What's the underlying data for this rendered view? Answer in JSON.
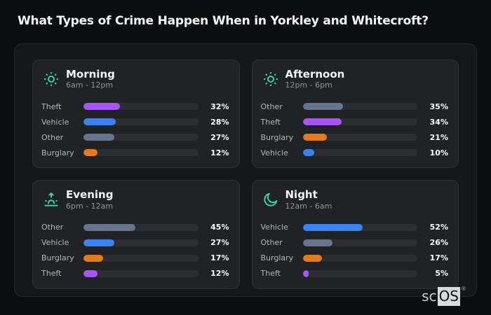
{
  "header": {
    "title": "What Types of Crime Happen When in Yorkley and Whitecroft?"
  },
  "brand": {
    "prefix": "sc",
    "suffix": "OS",
    "registered": "®"
  },
  "colors": {
    "accent": "#31d49f",
    "theft": "#a855f7",
    "vehicle": "#3b82f6",
    "other": "#66758c",
    "burglary": "#e5791b",
    "track": "#2c2e33",
    "card_bg": "#202226",
    "panel_bg": "#16171a",
    "page_bg": "#0c0d0f"
  },
  "chart_data": [
    {
      "type": "bar",
      "title": "Morning",
      "subtitle": "6am - 12pm",
      "icon": "sun-icon",
      "categories": [
        "Theft",
        "Vehicle",
        "Other",
        "Burglary"
      ],
      "values": [
        32,
        28,
        27,
        12
      ],
      "labels": [
        "32%",
        "28%",
        "27%",
        "12%"
      ],
      "colors": [
        "#a855f7",
        "#3b82f6",
        "#66758c",
        "#e5791b"
      ],
      "xlim": [
        0,
        100
      ],
      "legend": "none",
      "grid": false
    },
    {
      "type": "bar",
      "title": "Afternoon",
      "subtitle": "12pm - 6pm",
      "icon": "sun-icon",
      "categories": [
        "Other",
        "Theft",
        "Burglary",
        "Vehicle"
      ],
      "values": [
        35,
        34,
        21,
        10
      ],
      "labels": [
        "35%",
        "34%",
        "21%",
        "10%"
      ],
      "colors": [
        "#66758c",
        "#a855f7",
        "#e5791b",
        "#3b82f6"
      ],
      "xlim": [
        0,
        100
      ],
      "legend": "none",
      "grid": false
    },
    {
      "type": "bar",
      "title": "Evening",
      "subtitle": "6pm - 12am",
      "icon": "sunrise-icon",
      "categories": [
        "Other",
        "Vehicle",
        "Burglary",
        "Theft"
      ],
      "values": [
        45,
        27,
        17,
        12
      ],
      "labels": [
        "45%",
        "27%",
        "17%",
        "12%"
      ],
      "colors": [
        "#66758c",
        "#3b82f6",
        "#e5791b",
        "#a855f7"
      ],
      "xlim": [
        0,
        100
      ],
      "legend": "none",
      "grid": false
    },
    {
      "type": "bar",
      "title": "Night",
      "subtitle": "12am - 6am",
      "icon": "moon-icon",
      "categories": [
        "Vehicle",
        "Other",
        "Burglary",
        "Theft"
      ],
      "values": [
        52,
        26,
        17,
        5
      ],
      "labels": [
        "52%",
        "26%",
        "17%",
        "5%"
      ],
      "colors": [
        "#3b82f6",
        "#66758c",
        "#e5791b",
        "#a855f7"
      ],
      "xlim": [
        0,
        100
      ],
      "legend": "none",
      "grid": false
    }
  ]
}
